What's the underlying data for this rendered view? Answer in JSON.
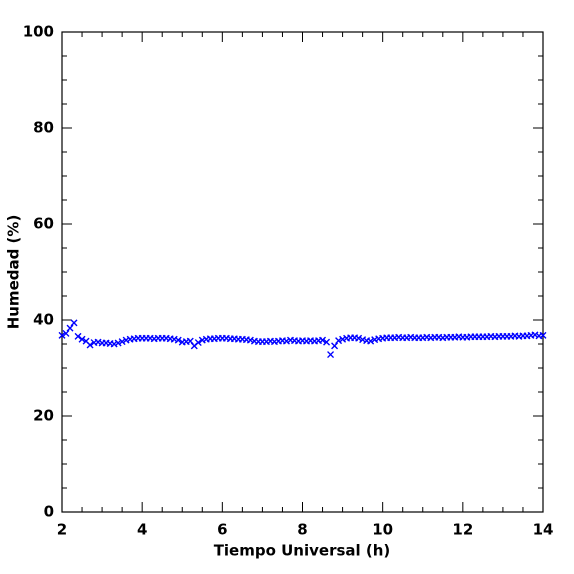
{
  "chart_data": {
    "type": "scatter",
    "xlabel": "Tiempo Universal (h)",
    "ylabel": "Humedad (%)",
    "xlim": [
      2,
      14
    ],
    "ylim": [
      0,
      100
    ],
    "xticks": [
      2,
      4,
      6,
      8,
      10,
      12,
      14
    ],
    "yticks": [
      0,
      20,
      40,
      60,
      80,
      100
    ],
    "xticks_minor": [
      2.5,
      3,
      3.5,
      4.5,
      5,
      5.5,
      6.5,
      7,
      7.5,
      8.5,
      9,
      9.5,
      10.5,
      11,
      11.5,
      12.5,
      13,
      13.5
    ],
    "yticks_minor": [
      5,
      10,
      15,
      25,
      30,
      35,
      45,
      50,
      55,
      65,
      70,
      75,
      85,
      90,
      95
    ],
    "marker": "x",
    "series": [
      {
        "color": "#0000ff",
        "x": [
          2.0,
          2.1,
          2.2,
          2.3,
          2.4,
          2.5,
          2.6,
          2.7,
          2.8,
          2.9,
          3.0,
          3.1,
          3.2,
          3.3,
          3.4,
          3.5,
          3.6,
          3.7,
          3.8,
          3.9,
          4.0,
          4.1,
          4.2,
          4.3,
          4.4,
          4.5,
          4.6,
          4.7,
          4.8,
          4.9,
          5.0,
          5.1,
          5.2,
          5.3,
          5.4,
          5.5,
          5.6,
          5.7,
          5.8,
          5.9,
          6.0,
          6.1,
          6.2,
          6.3,
          6.4,
          6.5,
          6.6,
          6.7,
          6.8,
          6.9,
          7.0,
          7.1,
          7.2,
          7.3,
          7.4,
          7.5,
          7.6,
          7.7,
          7.8,
          7.9,
          8.0,
          8.1,
          8.2,
          8.3,
          8.4,
          8.5,
          8.6,
          8.7,
          8.8,
          8.9,
          9.0,
          9.1,
          9.2,
          9.3,
          9.4,
          9.5,
          9.6,
          9.7,
          9.8,
          9.9,
          10.0,
          10.1,
          10.2,
          10.3,
          10.4,
          10.5,
          10.6,
          10.7,
          10.8,
          10.9,
          11.0,
          11.1,
          11.2,
          11.3,
          11.4,
          11.5,
          11.6,
          11.7,
          11.8,
          11.9,
          12.0,
          12.1,
          12.2,
          12.3,
          12.4,
          12.5,
          12.6,
          12.7,
          12.8,
          12.9,
          13.0,
          13.1,
          13.2,
          13.3,
          13.4,
          13.5,
          13.6,
          13.7,
          13.8,
          13.9,
          14.0
        ],
        "values": [
          36.8,
          37.2,
          38.3,
          39.4,
          36.6,
          36.0,
          35.6,
          34.8,
          35.3,
          35.4,
          35.2,
          35.2,
          35.1,
          35.0,
          35.2,
          35.5,
          35.8,
          36.0,
          36.1,
          36.2,
          36.2,
          36.2,
          36.2,
          36.1,
          36.2,
          36.2,
          36.2,
          36.1,
          36.0,
          35.8,
          35.4,
          35.5,
          35.6,
          34.6,
          35.3,
          35.8,
          36.0,
          36.1,
          36.1,
          36.2,
          36.2,
          36.2,
          36.1,
          36.1,
          36.0,
          36.0,
          35.9,
          35.8,
          35.6,
          35.5,
          35.5,
          35.5,
          35.6,
          35.5,
          35.6,
          35.7,
          35.6,
          35.8,
          35.7,
          35.6,
          35.7,
          35.6,
          35.7,
          35.6,
          35.7,
          35.8,
          35.4,
          32.8,
          34.6,
          35.7,
          36.0,
          36.2,
          36.3,
          36.3,
          36.2,
          35.9,
          35.7,
          35.6,
          35.9,
          36.1,
          36.2,
          36.3,
          36.3,
          36.3,
          36.4,
          36.3,
          36.3,
          36.4,
          36.3,
          36.3,
          36.3,
          36.4,
          36.3,
          36.4,
          36.4,
          36.3,
          36.4,
          36.4,
          36.4,
          36.5,
          36.4,
          36.4,
          36.5,
          36.5,
          36.5,
          36.5,
          36.5,
          36.6,
          36.5,
          36.6,
          36.6,
          36.6,
          36.6,
          36.7,
          36.6,
          36.7,
          36.7,
          36.8,
          36.9,
          36.7,
          36.8
        ]
      }
    ]
  }
}
